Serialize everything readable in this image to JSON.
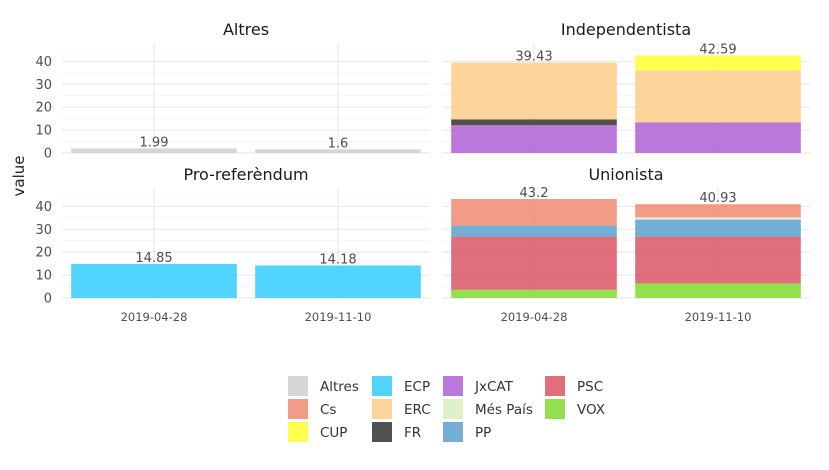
{
  "chart_data": {
    "type": "bar",
    "stacked": true,
    "ylabel": "value",
    "x": [
      "2019-04-28",
      "2019-11-10"
    ],
    "ylim": [
      0,
      48
    ],
    "yticks": [
      0,
      10,
      20,
      30,
      40
    ],
    "grid": true,
    "legend_position": "bottom",
    "parties": [
      "Altres",
      "Cs",
      "CUP",
      "ECP",
      "ERC",
      "FR",
      "JxCAT",
      "Més País",
      "PP",
      "PSC",
      "VOX"
    ],
    "colors": {
      "Altres": "#cfcfcf",
      "Cs": "#f08a72",
      "CUP": "#ffff33",
      "ECP": "#33ccff",
      "ERC": "#ffcc88",
      "FR": "#333333",
      "JxCAT": "#b05fd4",
      "Més País": "#d9efbf",
      "PP": "#5aa0cf",
      "PSC": "#db5565",
      "VOX": "#80d92e"
    },
    "panels": [
      {
        "title": "Altres",
        "totals": [
          "1.99",
          "1.6"
        ],
        "series": [
          {
            "name": "Altres",
            "values": [
              1.99,
              1.6
            ]
          }
        ]
      },
      {
        "title": "Independentista",
        "totals": [
          "39.43",
          "42.59"
        ],
        "series": [
          {
            "name": "JxCAT",
            "values": [
              12.1,
              13.4
            ]
          },
          {
            "name": "FR",
            "values": [
              2.6,
              0
            ]
          },
          {
            "name": "ERC",
            "values": [
              24.73,
              22.69
            ]
          },
          {
            "name": "CUP",
            "values": [
              0,
              6.5
            ]
          }
        ]
      },
      {
        "title": "Pro-referèndum",
        "totals": [
          "14.85",
          "14.18"
        ],
        "series": [
          {
            "name": "ECP",
            "values": [
              14.85,
              14.18
            ]
          }
        ]
      },
      {
        "title": "Unionista",
        "totals": [
          "43.2",
          "40.93"
        ],
        "series": [
          {
            "name": "VOX",
            "values": [
              3.6,
              6.3
            ]
          },
          {
            "name": "PSC",
            "values": [
              23.2,
              20.5
            ]
          },
          {
            "name": "PP",
            "values": [
              4.8,
              7.4
            ]
          },
          {
            "name": "Més País",
            "values": [
              0,
              1.0
            ]
          },
          {
            "name": "Cs",
            "values": [
              11.6,
              5.73
            ]
          }
        ]
      }
    ]
  }
}
